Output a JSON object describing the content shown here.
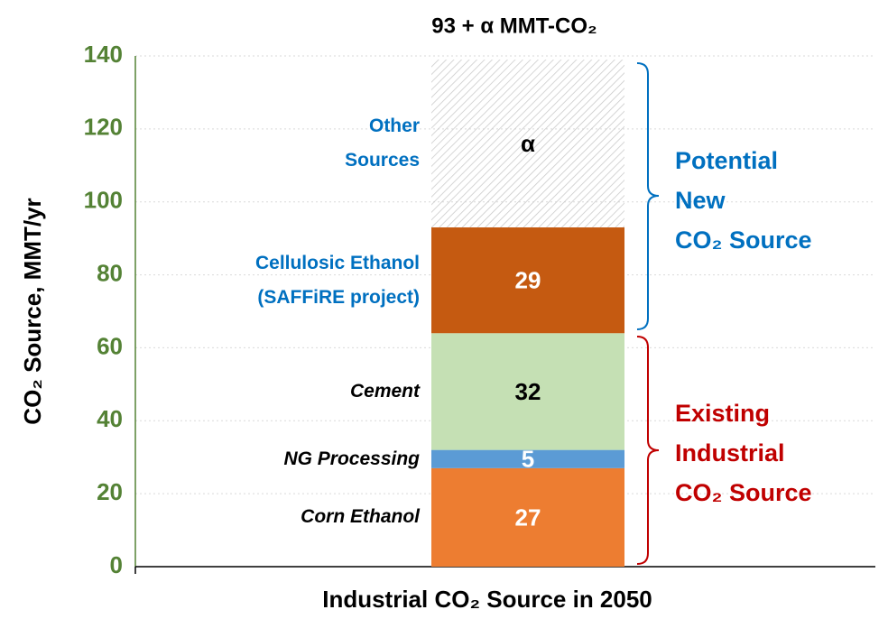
{
  "chart_data": {
    "type": "stacked_bar",
    "title": "93 + α MMT-CO₂",
    "xlabel": "Industrial CO₂ Source in 2050",
    "ylabel": "CO₂ Source, MMT/yr",
    "ylim": [
      0,
      140
    ],
    "yticks": [
      0,
      20,
      40,
      60,
      80,
      100,
      120,
      140
    ],
    "grid": true,
    "tick_color": "#548235",
    "series": [
      {
        "name": "Corn Ethanol",
        "color": "#ED7D31",
        "label_color": "#ffffff",
        "name_color": "#000000",
        "name_style": "italic",
        "values": [
          27
        ]
      },
      {
        "name": "NG Processing",
        "color": "#5B9BD5",
        "label_color": "#ffffff",
        "name_color": "#000000",
        "name_style": "italic",
        "values": [
          5
        ]
      },
      {
        "name": "Cement",
        "color": "#C5E0B4",
        "label_color": "#000000",
        "name_color": "#000000",
        "name_style": "italic",
        "values": [
          32
        ]
      },
      {
        "name": "Cellulosic Ethanol\n(SAFFiRE project)",
        "color": "#C55A11",
        "label_color": "#ffffff",
        "name_color": "#0070C0",
        "name_style": "normal",
        "values": [
          29
        ]
      },
      {
        "name": "Other\nSources",
        "color": "#bfbfbf",
        "pattern": "hatch",
        "label_color": "#000000",
        "name_color": "#0070C0",
        "name_style": "normal",
        "values": [
          46
        ],
        "value_labels": [
          "α"
        ]
      }
    ],
    "annotations": [
      {
        "text": "Potential\nNew\nCO₂ Source",
        "color": "#0070C0"
      },
      {
        "text": "Existing\nIndustrial\nCO₂ Source",
        "color": "#C00000"
      }
    ]
  }
}
